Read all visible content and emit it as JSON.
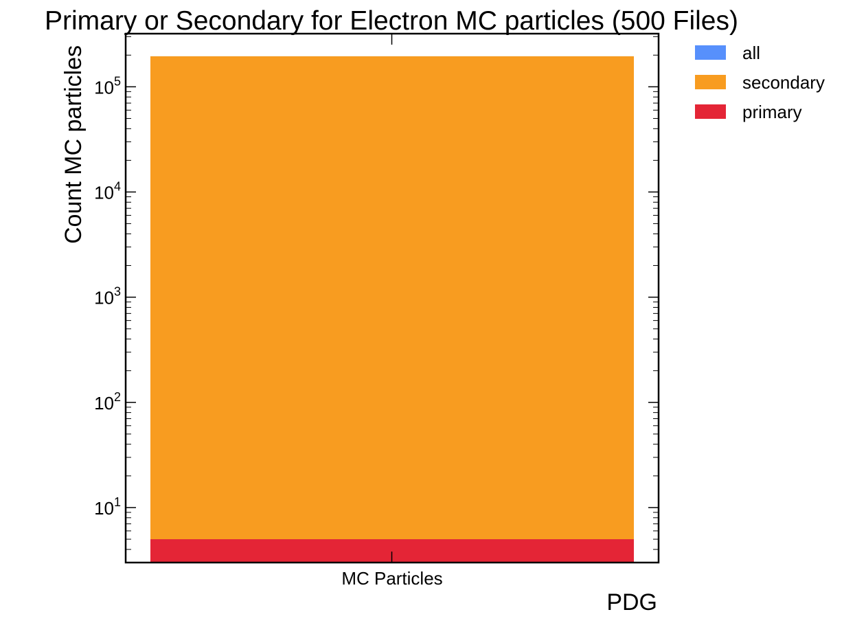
{
  "chart_data": {
    "type": "bar",
    "title": "Primary or Secondary for Electron MC particles (500 Files)",
    "xlabel": "PDG",
    "ylabel": "Count MC particles",
    "categories": [
      "MC Particles"
    ],
    "yscale": "log",
    "ylim": [
      3,
      320000
    ],
    "yticks": [
      {
        "value": 10,
        "base": "10",
        "exp": "1"
      },
      {
        "value": 100,
        "base": "10",
        "exp": "2"
      },
      {
        "value": 1000,
        "base": "10",
        "exp": "3"
      },
      {
        "value": 10000,
        "base": "10",
        "exp": "4"
      },
      {
        "value": 100000,
        "base": "10",
        "exp": "5"
      }
    ],
    "series": [
      {
        "name": "all",
        "values": [
          195000
        ],
        "color": "#5790fc"
      },
      {
        "name": "secondary",
        "values": [
          194995
        ],
        "color": "#f89c20"
      },
      {
        "name": "primary",
        "values": [
          5
        ],
        "color": "#e42536"
      }
    ],
    "grid": false,
    "legend_position": "outside-top-right"
  }
}
